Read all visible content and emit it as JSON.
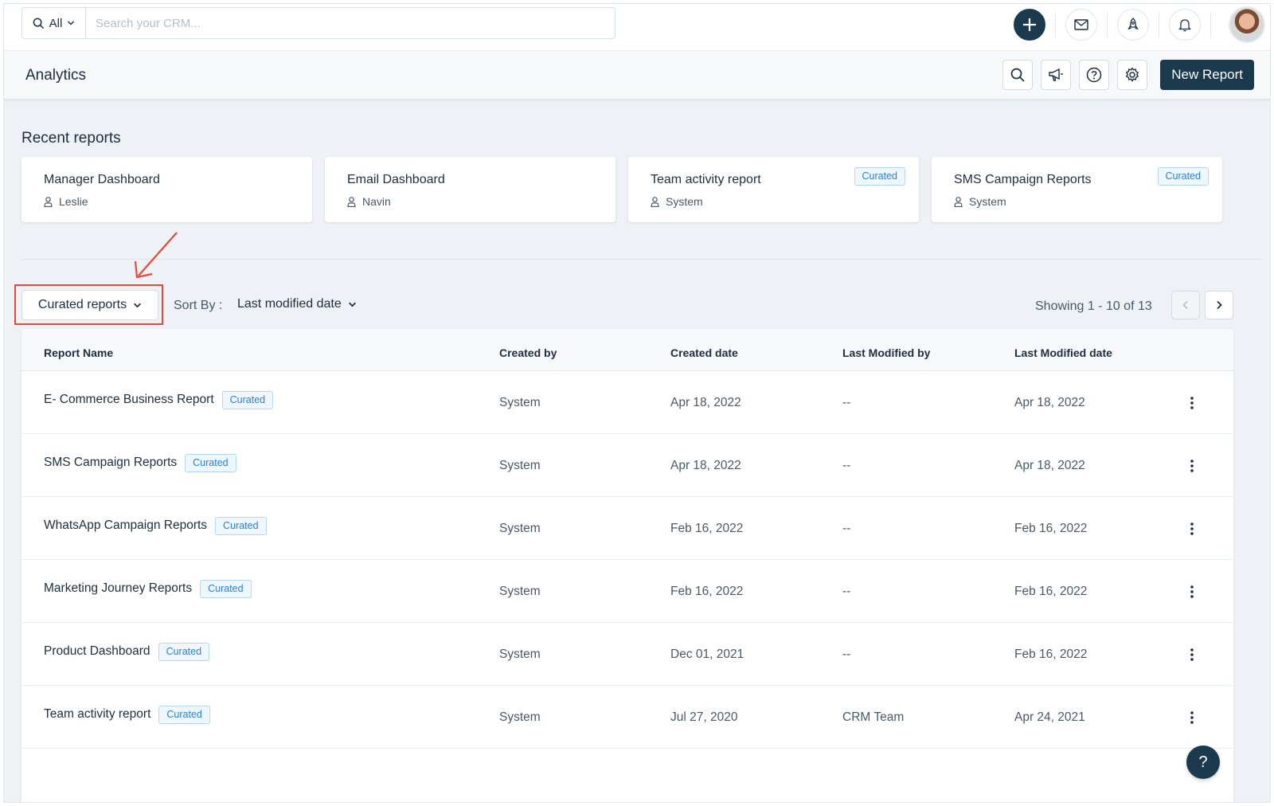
{
  "topbar": {
    "scope_label": "All",
    "search_placeholder": "Search your CRM...",
    "icons": [
      "plus-icon",
      "mail-icon",
      "rocket-icon",
      "bell-icon"
    ]
  },
  "header": {
    "title": "Analytics",
    "new_report_label": "New Report",
    "icons": [
      "search-icon",
      "megaphone-icon",
      "help-icon",
      "gear-icon"
    ]
  },
  "recent": {
    "title": "Recent reports",
    "cards": [
      {
        "name": "Manager Dashboard",
        "owner": "Leslie",
        "badge": ""
      },
      {
        "name": "Email Dashboard",
        "owner": "Navin",
        "badge": ""
      },
      {
        "name": "Team activity report",
        "owner": "System",
        "badge": "Curated"
      },
      {
        "name": "SMS Campaign Reports",
        "owner": "System",
        "badge": "Curated"
      }
    ]
  },
  "toolbar": {
    "filter_label": "Curated reports",
    "sort_by_label": "Sort By :",
    "sort_by_value": "Last modified date",
    "showing": "Showing 1 - 10 of 13"
  },
  "table": {
    "headers": [
      "Report Name",
      "Created by",
      "Created date",
      "Last Modified by",
      "Last Modified date"
    ],
    "rows": [
      {
        "name": "E- Commerce Business Report",
        "badge": "Curated",
        "created_by": "System",
        "created_date": "Apr 18, 2022",
        "modified_by": "--",
        "modified_date": "Apr 18, 2022"
      },
      {
        "name": "SMS Campaign Reports",
        "badge": "Curated",
        "created_by": "System",
        "created_date": "Apr 18, 2022",
        "modified_by": "--",
        "modified_date": "Apr 18, 2022"
      },
      {
        "name": "WhatsApp Campaign Reports",
        "badge": "Curated",
        "created_by": "System",
        "created_date": "Feb 16, 2022",
        "modified_by": "--",
        "modified_date": "Feb 16, 2022"
      },
      {
        "name": "Marketing Journey Reports",
        "badge": "Curated",
        "created_by": "System",
        "created_date": "Feb 16, 2022",
        "modified_by": "--",
        "modified_date": "Feb 16, 2022"
      },
      {
        "name": "Product Dashboard",
        "badge": "Curated",
        "created_by": "System",
        "created_date": "Dec 01, 2021",
        "modified_by": "--",
        "modified_date": "Feb 16, 2022"
      },
      {
        "name": "Team activity report",
        "badge": "Curated",
        "created_by": "System",
        "created_date": "Jul 27, 2020",
        "modified_by": "CRM Team",
        "modified_date": "Apr 24, 2021"
      }
    ]
  },
  "help_fab_label": "?",
  "colors": {
    "primary": "#1b3a4e",
    "badge_text": "#2f80d0",
    "highlight": "#e24a3a"
  }
}
